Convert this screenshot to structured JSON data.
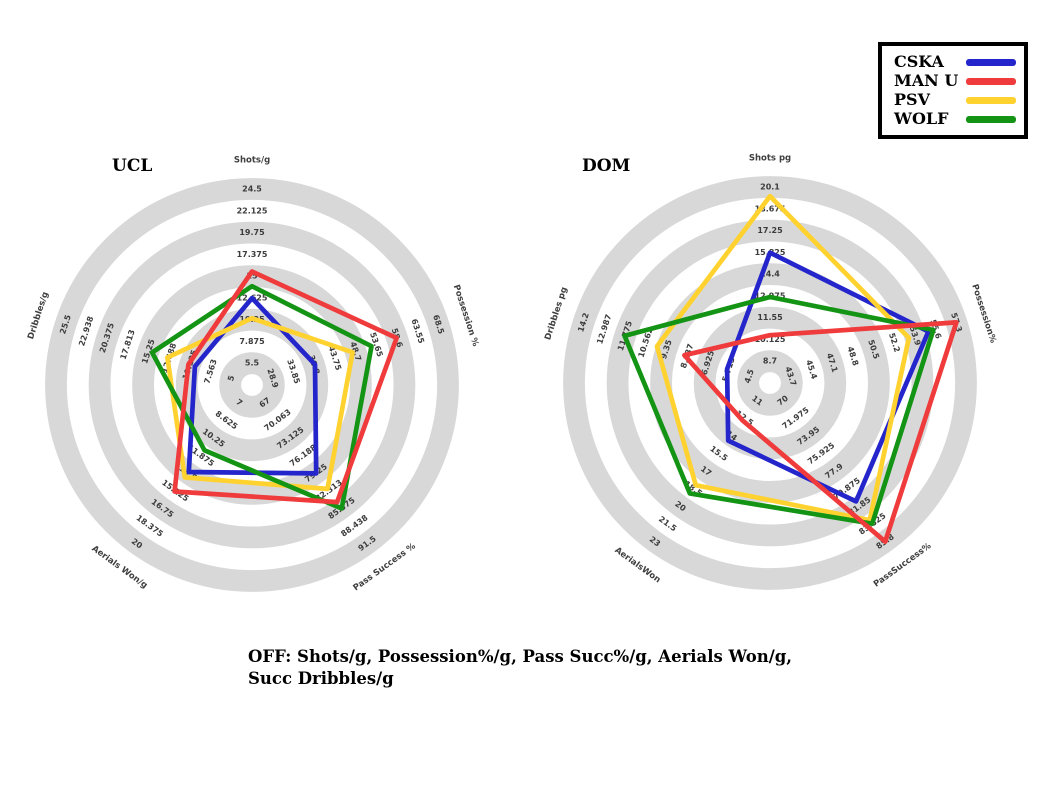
{
  "caption": "OFF: Shots/g, Possession%/g, Pass Succ%/g, Aerials Won/g, Succ Dribbles/g",
  "style": {
    "ring_color": "#d8d8d8",
    "background": "#ffffff",
    "legend_border": "#000000"
  },
  "legend": {
    "items": [
      {
        "label": "CSKA",
        "color": "#2425cb"
      },
      {
        "label": "MAN U",
        "color": "#ef3b3b"
      },
      {
        "label": "PSV",
        "color": "#ffd22f"
      },
      {
        "label": "WOLF",
        "color": "#149414"
      }
    ]
  },
  "chart_data": [
    {
      "type": "radar",
      "title": "UCL",
      "grid": "alternating gray rings, 9 ticks per axis",
      "legend_position": "top-right shared",
      "axes": [
        {
          "label": "Shots/g",
          "ticks": [
            "5.5",
            "7.875",
            "10.25",
            "12.625",
            "15",
            "17.375",
            "19.75",
            "22.125",
            "24.5"
          ]
        },
        {
          "label": "Possession %",
          "ticks": [
            "28.9",
            "33.85",
            "38.8",
            "43.75",
            "48.7",
            "53.65",
            "58.6",
            "63.55",
            "68.5"
          ]
        },
        {
          "label": "Pass Success %",
          "ticks": [
            "67",
            "70.063",
            "73.125",
            "76.188",
            "79.25",
            "82.313",
            "85.375",
            "88.438",
            "91.5"
          ]
        },
        {
          "label": "Aerials Won/g",
          "ticks": [
            "7",
            "8.625",
            "10.25",
            "11.875",
            "13.5",
            "15.125",
            "16.75",
            "18.375",
            "20"
          ]
        },
        {
          "label": "Dribbles/g",
          "ticks": [
            "5",
            "7.563",
            "10.125",
            "12.688",
            "15.25",
            "17.813",
            "20.375",
            "22.938",
            "25.5"
          ]
        }
      ],
      "series": [
        {
          "name": "CSKA",
          "color": "#2425cb",
          "values": [
            12.6,
            39.0,
            79.3,
            13.4,
            9.5
          ]
        },
        {
          "name": "PSV",
          "color": "#ffd22f",
          "values": [
            10.4,
            48.0,
            82.0,
            13.9,
            12.9
          ]
        },
        {
          "name": "WOLF",
          "color": "#149414",
          "values": [
            13.9,
            52.5,
            85.4,
            11.4,
            14.8
          ]
        },
        {
          "name": "MAN U",
          "color": "#ef3b3b",
          "values": [
            15.5,
            58.5,
            84.3,
            15.2,
            10.3
          ]
        }
      ]
    },
    {
      "type": "radar",
      "title": "DOM",
      "grid": "alternating gray rings, 9 ticks per axis",
      "legend_position": "top-right shared",
      "axes": [
        {
          "label": "Shots pg",
          "ticks": [
            "8.7",
            "10.125",
            "11.55",
            "12.975",
            "14.4",
            "15.825",
            "17.25",
            "18.675",
            "20.1"
          ]
        },
        {
          "label": "Possession%",
          "ticks": [
            "43.7",
            "45.4",
            "47.1",
            "48.8",
            "50.5",
            "52.2",
            "53.9",
            "55.6",
            "57.3"
          ]
        },
        {
          "label": "PassSuccess%",
          "ticks": [
            "70",
            "71.975",
            "73.95",
            "75.925",
            "77.9",
            "79.875",
            "81.85",
            "83.825",
            "85.8"
          ]
        },
        {
          "label": "AerialsWon",
          "ticks": [
            "11",
            "12.5",
            "14",
            "15.5",
            "17",
            "18.5",
            "20",
            "21.5",
            "23"
          ]
        },
        {
          "label": "Dribbles pg",
          "ticks": [
            "4.5",
            "5.713",
            "6.925",
            "8.137",
            "9.35",
            "10.562",
            "11.775",
            "12.987",
            "14.2"
          ]
        }
      ],
      "series": [
        {
          "name": "CSKA",
          "color": "#2425cb",
          "values": [
            15.8,
            55.0,
            81.3,
            14.4,
            5.8
          ]
        },
        {
          "name": "PSV",
          "color": "#ffd22f",
          "values": [
            19.5,
            53.4,
            83.4,
            18.2,
            9.9
          ]
        },
        {
          "name": "WOLF",
          "color": "#149414",
          "values": [
            12.9,
            55.4,
            83.8,
            18.9,
            11.8
          ]
        },
        {
          "name": "MAN U",
          "color": "#ef3b3b",
          "values": [
            10.4,
            57.3,
            85.8,
            12.7,
            8.3
          ]
        }
      ]
    }
  ]
}
